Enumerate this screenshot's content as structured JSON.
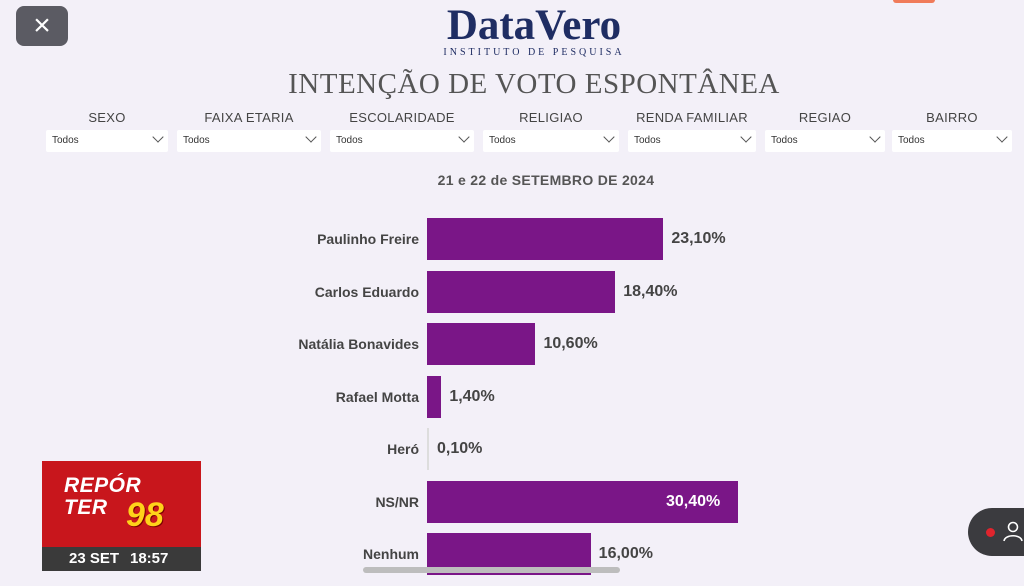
{
  "brand": {
    "name": "DataVero",
    "subtitle": "INSTITUTO DE PESQUISA"
  },
  "page_title": "INTENÇÃO DE VOTO ESPONTÂNEA",
  "filters": [
    {
      "label": "SEXO",
      "value": "Todos"
    },
    {
      "label": "FAIXA ETARIA",
      "value": "Todos"
    },
    {
      "label": "ESCOLARIDADE",
      "value": "Todos"
    },
    {
      "label": "RELIGIAO",
      "value": "Todos"
    },
    {
      "label": "RENDA FAMILIAR",
      "value": "Todos"
    },
    {
      "label": "REGIAO",
      "value": "Todos"
    },
    {
      "label": "BAIRRO",
      "value": "Todos"
    }
  ],
  "chart_data": {
    "type": "bar",
    "orientation": "horizontal",
    "subtitle": "21 e 22 de SETEMBRO DE 2024",
    "categories": [
      "Paulinho Freire",
      "Carlos Eduardo",
      "Natália Bonavides",
      "Rafael Motta",
      "Heró",
      "NS/NR",
      "Nenhum"
    ],
    "values": [
      23.1,
      18.4,
      10.6,
      1.4,
      0.1,
      30.4,
      16.0
    ],
    "value_labels": [
      "23,10%",
      "18,40%",
      "10,60%",
      "1,40%",
      "0,10%",
      "30,40%",
      "16,00%"
    ],
    "bar_color": "#7a1687",
    "xlim": [
      0,
      30.4
    ]
  },
  "overlay": {
    "close_label": "×",
    "badge_title_1": "REPÓR",
    "badge_title_2": "TER",
    "badge_number": "98",
    "badge_date": "23 SET",
    "badge_time": "18:57"
  }
}
